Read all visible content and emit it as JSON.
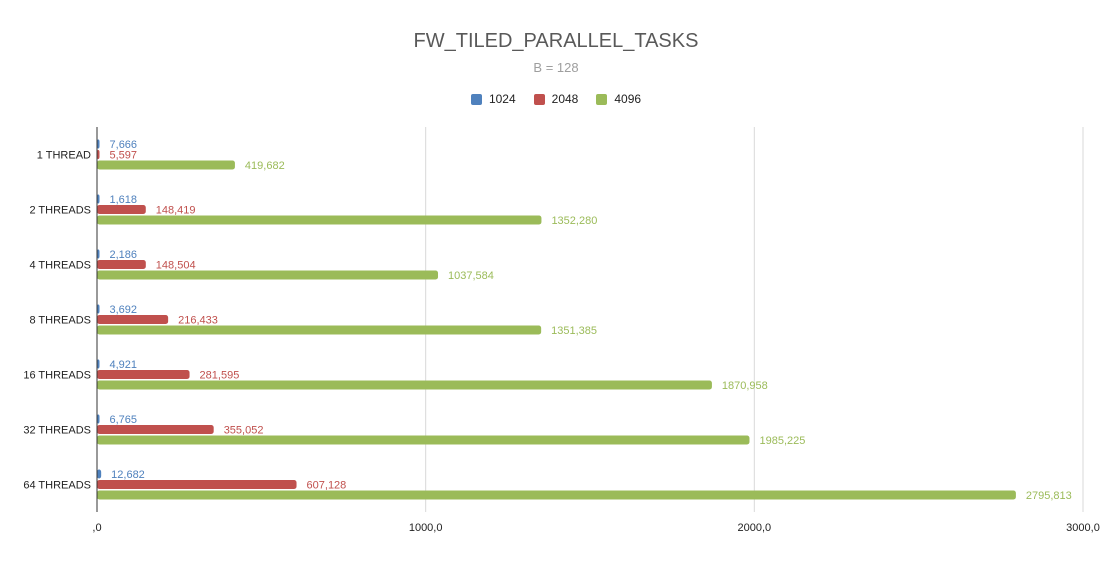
{
  "chart_data": {
    "type": "bar",
    "orientation": "horizontal",
    "title": "FW_TILED_PARALLEL_TASKS",
    "subtitle": "B = 128",
    "xlabel": "",
    "ylabel": "",
    "categories": [
      "1 THREAD",
      "2 THREADS",
      "4 THREADS",
      "8 THREADS",
      "16 THREADS",
      "32 THREADS",
      "64 THREADS"
    ],
    "series": [
      {
        "name": "1024",
        "color": "#4f81bd",
        "values": [
          7.666,
          1.618,
          2.186,
          3.692,
          4.921,
          6.765,
          12.682
        ],
        "labels": [
          "7,666",
          "1,618",
          "2,186",
          "3,692",
          "4,921",
          "6,765",
          "12,682"
        ]
      },
      {
        "name": "2048",
        "color": "#c0504d",
        "values": [
          5.597,
          148.419,
          148.504,
          216.433,
          281.595,
          355.052,
          607.128
        ],
        "labels": [
          "5,597",
          "148,419",
          "148,504",
          "216,433",
          "281,595",
          "355,052",
          "607,128"
        ]
      },
      {
        "name": "4096",
        "color": "#9bbb59",
        "values": [
          419.682,
          1352.28,
          1037.584,
          1351.385,
          1870.958,
          1985.225,
          2795.813
        ],
        "labels": [
          "419,682",
          "1352,280",
          "1037,584",
          "1351,385",
          "1870,958",
          "1985,225",
          "2795,813"
        ]
      }
    ],
    "xlim": [
      0,
      3000
    ],
    "xticks": [
      0,
      1000,
      2000,
      3000
    ],
    "xtick_labels": [
      ",0",
      "1000,0",
      "2000,0",
      "3000,0"
    ],
    "grid": true,
    "legend_position": "top-center"
  }
}
